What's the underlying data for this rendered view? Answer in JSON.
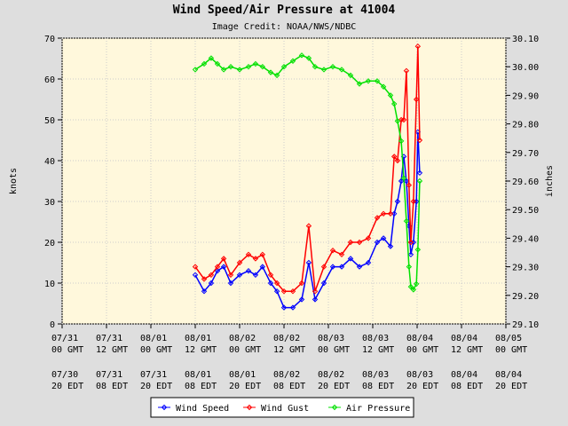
{
  "chart_data": {
    "type": "line",
    "title": "Wind Speed/Air Pressure at 41004",
    "subtitle": "Image Credit: NOAA/NWS/NDBC",
    "ylabel": "knots",
    "y2label": "inches",
    "x": [
      36,
      38.4,
      40.3,
      42,
      43.7,
      45.6,
      48,
      50.4,
      52.3,
      54.2,
      56.4,
      58.1,
      60,
      62.4,
      64.8,
      66.7,
      68.4,
      70.8,
      73.2,
      75.6,
      78,
      80.4,
      82.8,
      85.2,
      86.9,
      88.8,
      89.8,
      90.7,
      91.7,
      92.4,
      93.1,
      93.8,
      94.3,
      95,
      95.8,
      96.2,
      96.7
    ],
    "series": [
      {
        "name": "Wind Speed",
        "color": "#0000ff",
        "values": [
          12,
          8,
          10,
          13,
          14,
          10,
          12,
          13,
          12,
          14,
          10,
          8,
          4,
          4,
          6,
          15,
          6,
          10,
          14,
          14,
          16,
          14,
          15,
          20,
          21,
          19,
          27,
          30,
          35,
          41,
          35,
          24,
          17,
          20,
          30,
          47,
          37
        ]
      },
      {
        "name": "Wind Gust",
        "color": "#ff0000",
        "values": [
          14,
          11,
          12,
          14,
          16,
          12,
          15,
          17,
          16,
          17,
          12,
          10,
          8,
          8,
          10,
          24,
          8,
          14,
          18,
          17,
          20,
          20,
          21,
          26,
          27,
          27,
          41,
          40,
          50,
          50,
          62,
          34,
          20,
          30,
          55,
          68,
          45
        ]
      },
      {
        "name": "Air Pressure",
        "color": "#00e000",
        "axis": "y2",
        "values": [
          29.99,
          30.01,
          30.03,
          30.01,
          29.99,
          30.0,
          29.99,
          30.0,
          30.01,
          30.0,
          29.98,
          29.97,
          30.0,
          30.02,
          30.04,
          30.03,
          30.0,
          29.99,
          30.0,
          29.99,
          29.97,
          29.94,
          29.95,
          29.95,
          29.93,
          29.9,
          29.87,
          29.81,
          29.74,
          29.61,
          29.46,
          29.3,
          29.23,
          29.22,
          29.24,
          29.36,
          29.6
        ]
      }
    ],
    "xlim": [
      0,
      120
    ],
    "xticks": [
      {
        "value": 0,
        "label": "07/31",
        "time": "00 GMT",
        "local_date": "07/30",
        "local_time": "20 EDT"
      },
      {
        "value": 12,
        "label": "07/31",
        "time": "12 GMT",
        "local_date": "07/31",
        "local_time": "08 EDT"
      },
      {
        "value": 24,
        "label": "08/01",
        "time": "00 GMT",
        "local_date": "07/31",
        "local_time": "20 EDT"
      },
      {
        "value": 36,
        "label": "08/01",
        "time": "12 GMT",
        "local_date": "08/01",
        "local_time": "08 EDT"
      },
      {
        "value": 48,
        "label": "08/02",
        "time": "00 GMT",
        "local_date": "08/01",
        "local_time": "20 EDT"
      },
      {
        "value": 60,
        "label": "08/02",
        "time": "12 GMT",
        "local_date": "08/02",
        "local_time": "08 EDT"
      },
      {
        "value": 72,
        "label": "08/03",
        "time": "00 GMT",
        "local_date": "08/02",
        "local_time": "20 EDT"
      },
      {
        "value": 84,
        "label": "08/03",
        "time": "12 GMT",
        "local_date": "08/03",
        "local_time": "08 EDT"
      },
      {
        "value": 96,
        "label": "08/04",
        "time": "00 GMT",
        "local_date": "08/03",
        "local_time": "20 EDT"
      },
      {
        "value": 108,
        "label": "08/04",
        "time": "12 GMT",
        "local_date": "08/04",
        "local_time": "08 EDT"
      },
      {
        "value": 120,
        "label": "08/05",
        "time": "00 GMT",
        "local_date": "08/04",
        "local_time": "20 EDT"
      }
    ],
    "ylim": [
      0,
      70
    ],
    "yticks": [
      0,
      10,
      20,
      30,
      40,
      50,
      60,
      70
    ],
    "y2lim": [
      29.1,
      30.1
    ],
    "y2ticks": [
      {
        "value": 29.1,
        "label": "29.10"
      },
      {
        "value": 29.2,
        "label": "29.20"
      },
      {
        "value": 29.3,
        "label": "29.30"
      },
      {
        "value": 29.4,
        "label": "29.40"
      },
      {
        "value": 29.5,
        "label": "29.50"
      },
      {
        "value": 29.6,
        "label": "29.60"
      },
      {
        "value": 29.7,
        "label": "29.70"
      },
      {
        "value": 29.8,
        "label": "29.80"
      },
      {
        "value": 29.9,
        "label": "29.90"
      },
      {
        "value": 30.0,
        "label": "30.00"
      },
      {
        "value": 30.1,
        "label": "30.10"
      }
    ],
    "grid": true,
    "legend": "bottom"
  }
}
